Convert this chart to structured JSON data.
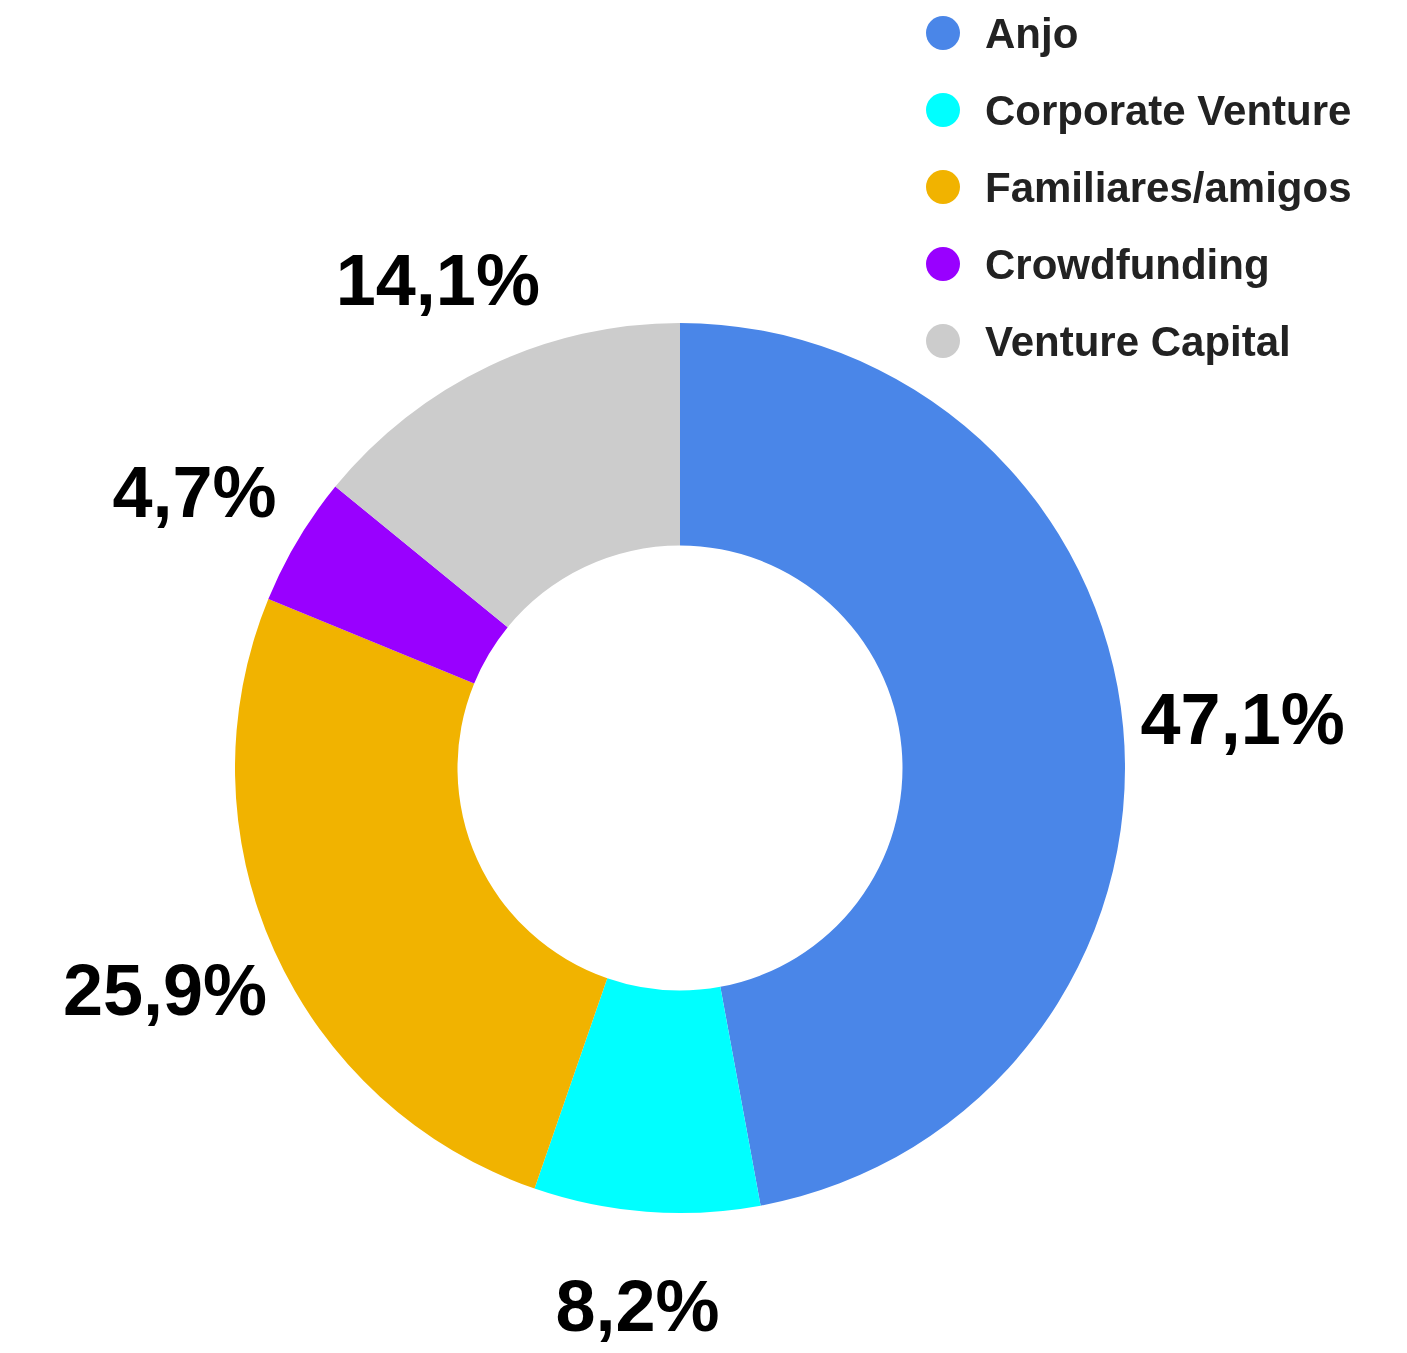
{
  "chart_data": {
    "type": "donut",
    "categories": [
      "Anjo",
      "Corporate Venture",
      "Familiares/amigos",
      "Crowdfunding",
      "Venture Capital"
    ],
    "values": [
      47.1,
      8.2,
      25.9,
      4.7,
      14.1
    ],
    "colors": [
      "#4a86e8",
      "#00ffff",
      "#f1b300",
      "#9900ff",
      "#cccccc"
    ],
    "value_labels": [
      "47,1%",
      "8,2%",
      "25,9%",
      "4,7%",
      "14,1%"
    ],
    "legend": "top right"
  }
}
